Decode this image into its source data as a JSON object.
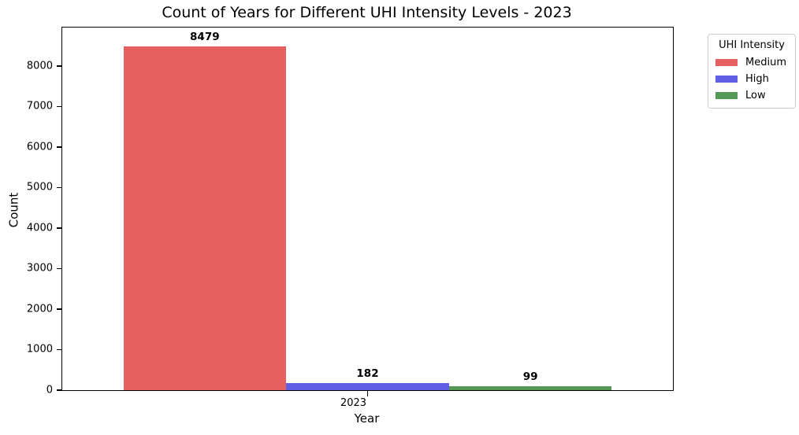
{
  "title": "Count of Years for Different UHI Intensity Levels - 2023",
  "chart_data": {
    "type": "bar",
    "categories": [
      "2023"
    ],
    "series": [
      {
        "name": "Medium",
        "values": [
          8479
        ],
        "color": "#e56060"
      },
      {
        "name": "High",
        "values": [
          182
        ],
        "color": "#5f5fe5"
      },
      {
        "name": "Low",
        "values": [
          99
        ],
        "color": "#569856"
      }
    ],
    "bar_labels": [
      "8479",
      "182",
      "99"
    ],
    "title": "Count of Years for Different UHI Intensity Levels - 2023",
    "xlabel": "Year",
    "ylabel": "Count",
    "ylim": [
      0,
      8950
    ],
    "yticks": [
      0,
      1000,
      2000,
      3000,
      4000,
      5000,
      6000,
      7000,
      8000
    ],
    "grid": false,
    "legend": {
      "title": "UHI Intensity",
      "position": "upper right outside axes",
      "entries": [
        "Medium",
        "High",
        "Low"
      ]
    }
  }
}
